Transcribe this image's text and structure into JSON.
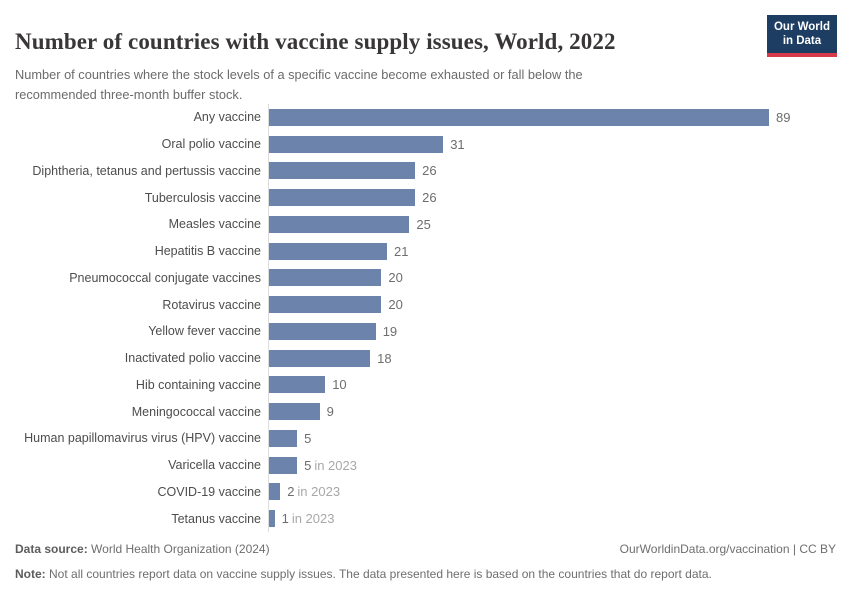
{
  "header": {
    "title": "Number of countries with vaccine supply issues, World, 2022",
    "subtitle": "Number of countries where the stock levels of a specific vaccine become exhausted or fall below the recommended three-month buffer stock.",
    "logo": {
      "line1": "Our World",
      "line2": "in Data"
    }
  },
  "chart_data": {
    "type": "bar",
    "orientation": "horizontal",
    "title": "Number of countries with vaccine supply issues, World, 2022",
    "xlabel": "",
    "ylabel": "",
    "xlim": [
      0,
      89
    ],
    "grid": false,
    "legend": false,
    "bar_color": "#6c83ab",
    "rows": [
      {
        "label": "Any vaccine",
        "value": 89,
        "suffix": ""
      },
      {
        "label": "Oral polio vaccine",
        "value": 31,
        "suffix": ""
      },
      {
        "label": "Diphtheria, tetanus and pertussis vaccine",
        "value": 26,
        "suffix": ""
      },
      {
        "label": "Tuberculosis vaccine",
        "value": 26,
        "suffix": ""
      },
      {
        "label": "Measles vaccine",
        "value": 25,
        "suffix": ""
      },
      {
        "label": "Hepatitis B vaccine",
        "value": 21,
        "suffix": ""
      },
      {
        "label": "Pneumococcal conjugate vaccines",
        "value": 20,
        "suffix": ""
      },
      {
        "label": "Rotavirus vaccine",
        "value": 20,
        "suffix": ""
      },
      {
        "label": "Yellow fever vaccine",
        "value": 19,
        "suffix": ""
      },
      {
        "label": "Inactivated polio vaccine",
        "value": 18,
        "suffix": ""
      },
      {
        "label": "Hib containing vaccine",
        "value": 10,
        "suffix": ""
      },
      {
        "label": "Meningococcal vaccine",
        "value": 9,
        "suffix": ""
      },
      {
        "label": "Human papillomavirus virus (HPV) vaccine",
        "value": 5,
        "suffix": ""
      },
      {
        "label": "Varicella vaccine",
        "value": 5,
        "suffix": "in 2023"
      },
      {
        "label": "COVID-19 vaccine",
        "value": 2,
        "suffix": "in 2023"
      },
      {
        "label": "Tetanus vaccine",
        "value": 1,
        "suffix": "in 2023"
      }
    ]
  },
  "footer": {
    "datasource_label": "Data source:",
    "datasource_value": "World Health Organization (2024)",
    "link": "OurWorldinData.org/vaccination | CC BY",
    "note_label": "Note:",
    "note_value": "Not all countries report data on vaccine supply issues. The data presented here is based on the countries that do report data."
  },
  "colors": {
    "bar": "#6c83ab",
    "axis_line": "#dcdcdc",
    "logo_bg": "#1d3d63",
    "logo_accent": "#d93a4a"
  }
}
